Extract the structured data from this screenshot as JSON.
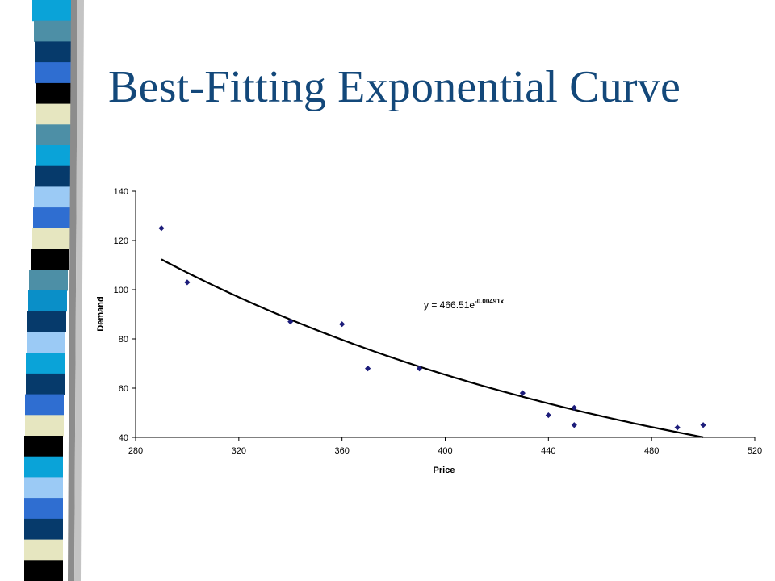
{
  "slide": {
    "title": "Best-Fitting Exponential Curve",
    "title_color": "#13487a",
    "decor_colors": [
      "#0aa3d8",
      "#4d8fa6",
      "#063a6b",
      "#2f6ed1",
      "#000000",
      "#e6e6c0",
      "#9bcaf5",
      "#0a8fc8"
    ]
  },
  "chart_data": {
    "type": "scatter",
    "title": "",
    "xlabel": "Price",
    "ylabel": "Demand",
    "xlim": [
      280,
      520
    ],
    "ylim": [
      40,
      140
    ],
    "x_ticks": [
      "280",
      "320",
      "360",
      "400",
      "440",
      "480",
      "520"
    ],
    "y_ticks": [
      "40",
      "60",
      "80",
      "100",
      "120",
      "140"
    ],
    "grid": false,
    "legend": "none",
    "marker_color": "#1c1c7a",
    "series": [
      {
        "x": [
          290,
          300,
          340,
          360,
          370,
          390,
          430,
          440,
          450,
          450,
          490,
          500
        ],
        "y": [
          125,
          103,
          87,
          86,
          68,
          68,
          58,
          49,
          52,
          45,
          44,
          45
        ]
      }
    ],
    "trendline": {
      "type": "exponential",
      "a": 466.51,
      "b": -0.00491,
      "x_range": [
        290,
        500
      ],
      "equation_base": "y = 466.51e",
      "equation_exponent": "-0.00491x"
    }
  }
}
